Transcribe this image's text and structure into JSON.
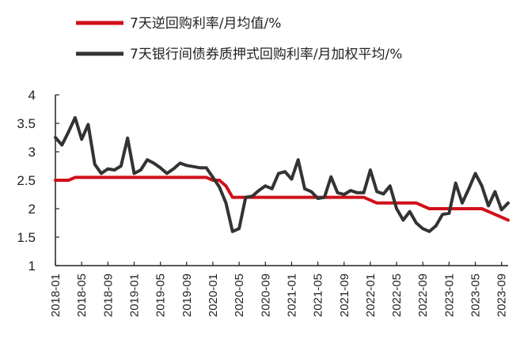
{
  "chart_data": {
    "type": "line",
    "title": "",
    "xlabel": "",
    "ylabel": "",
    "ylim": [
      1,
      4
    ],
    "yticks": [
      "1",
      "1.5",
      "2",
      "2.5",
      "3",
      "3.5",
      "4"
    ],
    "grid": false,
    "legend_position": "top",
    "xticks": [
      "2018-01",
      "2018-05",
      "2018-09",
      "2019-01",
      "2019-05",
      "2019-09",
      "2020-01",
      "2020-05",
      "2020-09",
      "2021-01",
      "2021-05",
      "2021-09",
      "2022-01",
      "2022-05",
      "2022-09",
      "2023-01",
      "2023-05",
      "2023-09"
    ],
    "series": [
      {
        "name": "7天逆回购利率/月均值/%",
        "color": "#d0101a",
        "values": [
          2.5,
          2.5,
          2.5,
          2.55,
          2.55,
          2.55,
          2.55,
          2.55,
          2.55,
          2.55,
          2.55,
          2.55,
          2.55,
          2.55,
          2.55,
          2.55,
          2.55,
          2.55,
          2.55,
          2.55,
          2.55,
          2.55,
          2.55,
          2.55,
          2.5,
          2.5,
          2.4,
          2.2,
          2.2,
          2.2,
          2.2,
          2.2,
          2.2,
          2.2,
          2.2,
          2.2,
          2.2,
          2.2,
          2.2,
          2.2,
          2.2,
          2.2,
          2.2,
          2.2,
          2.2,
          2.2,
          2.2,
          2.2,
          2.15,
          2.1,
          2.1,
          2.1,
          2.1,
          2.1,
          2.1,
          2.1,
          2.05,
          2.0,
          2.0,
          2.0,
          2.0,
          2.0,
          2.0,
          2.0,
          2.0,
          2.0,
          1.95,
          1.9,
          1.85,
          1.8
        ]
      },
      {
        "name": "7天银行间债券质押式回购利率/月加权平均/%",
        "color": "#333333",
        "values": [
          3.25,
          3.12,
          3.35,
          3.6,
          3.22,
          3.48,
          2.78,
          2.62,
          2.7,
          2.68,
          2.75,
          3.24,
          2.62,
          2.68,
          2.86,
          2.8,
          2.72,
          2.62,
          2.7,
          2.8,
          2.76,
          2.74,
          2.72,
          2.72,
          2.55,
          2.38,
          2.1,
          1.6,
          1.65,
          2.2,
          2.22,
          2.32,
          2.4,
          2.35,
          2.62,
          2.65,
          2.52,
          2.86,
          2.35,
          2.3,
          2.18,
          2.2,
          2.56,
          2.28,
          2.25,
          2.32,
          2.28,
          2.28,
          2.68,
          2.3,
          2.26,
          2.4,
          2.0,
          1.8,
          1.95,
          1.75,
          1.65,
          1.6,
          1.7,
          1.9,
          1.92,
          2.45,
          2.1,
          2.35,
          2.62,
          2.4,
          2.05,
          2.3,
          1.98,
          2.1
        ]
      }
    ]
  }
}
